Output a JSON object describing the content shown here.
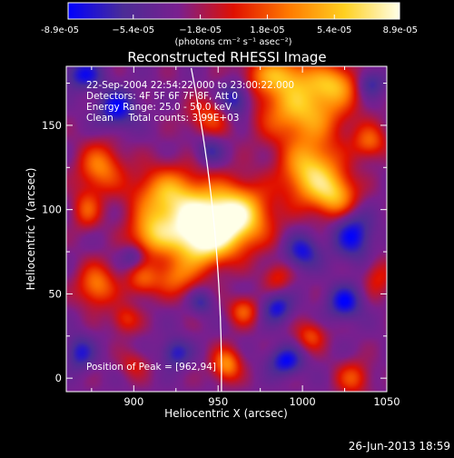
{
  "chart_data": {
    "type": "heatmap",
    "title": "Reconstructed RHESSI Image",
    "xlabel": "Heliocentric X (arcsec)",
    "ylabel": "Heliocentric Y (arcsec)",
    "xlim": [
      860,
      1050
    ],
    "ylim": [
      -8,
      185
    ],
    "x_ticks": [
      "900",
      "950",
      "1000",
      "1050"
    ],
    "x_tick_values": [
      900,
      950,
      1000,
      1050
    ],
    "y_ticks": [
      "0",
      "50",
      "100",
      "150"
    ],
    "y_tick_values": [
      0,
      50,
      100,
      150
    ],
    "colorbar": {
      "ticks": [
        "-8.9e-05",
        "−5.4e-05",
        "−1.8e-05",
        "1.8e-05",
        "5.4e-05",
        "8.9e-05"
      ],
      "tick_values": [
        -8.9e-05,
        -5.4e-05,
        -1.8e-05,
        1.8e-05,
        5.4e-05,
        8.9e-05
      ],
      "range": [
        -8.9e-05,
        8.9e-05
      ],
      "unit_label": "(photons cm⁻² s⁻¹ asec⁻²)",
      "colors": [
        "#0000ff",
        "#4b2c96",
        "#7a1f8f",
        "#e01000",
        "#ff7a00",
        "#ffd020",
        "#ffffe8"
      ]
    },
    "annotations": {
      "line1": "22-Sep-2004 22:54:22.000 to 23:00:22.000",
      "line2": "Detectors: 4F 5F 6F 7F 8F, Att 0",
      "line3": "Energy Range: 25.0 - 50.0 keV",
      "line4": "Clean     Total counts: 3.99E+03",
      "peak": "Position of Peak = [962,94]"
    },
    "peak_position": [
      962,
      94
    ],
    "footer_date": "26-Jun-2013 18:59",
    "limb_color": "#ffffff",
    "sources": [
      {
        "x": 960,
        "y": 96,
        "sx": 14,
        "sy": 13,
        "a": 1.0
      },
      {
        "x": 935,
        "y": 92,
        "sx": 16,
        "sy": 12,
        "a": 0.8
      },
      {
        "x": 920,
        "y": 110,
        "sx": 15,
        "sy": 11,
        "a": 0.62
      },
      {
        "x": 940,
        "y": 78,
        "sx": 12,
        "sy": 10,
        "a": 0.6
      },
      {
        "x": 910,
        "y": 85,
        "sx": 9,
        "sy": 9,
        "a": 0.55
      },
      {
        "x": 925,
        "y": 60,
        "sx": 9,
        "sy": 8,
        "a": 0.45
      },
      {
        "x": 905,
        "y": 58,
        "sx": 7,
        "sy": 7,
        "a": 0.4
      },
      {
        "x": 1005,
        "y": 122,
        "sx": 12,
        "sy": 13,
        "a": 0.82
      },
      {
        "x": 1020,
        "y": 108,
        "sx": 9,
        "sy": 9,
        "a": 0.6
      },
      {
        "x": 1000,
        "y": 160,
        "sx": 18,
        "sy": 14,
        "a": 0.75
      },
      {
        "x": 985,
        "y": 180,
        "sx": 14,
        "sy": 8,
        "a": 0.55
      },
      {
        "x": 1020,
        "y": 175,
        "sx": 10,
        "sy": 8,
        "a": 0.5
      },
      {
        "x": 1040,
        "y": 140,
        "sx": 7,
        "sy": 7,
        "a": 0.45
      },
      {
        "x": 880,
        "y": 125,
        "sx": 9,
        "sy": 10,
        "a": 0.55
      },
      {
        "x": 872,
        "y": 100,
        "sx": 6,
        "sy": 8,
        "a": 0.4
      },
      {
        "x": 878,
        "y": 55,
        "sx": 8,
        "sy": 9,
        "a": 0.55
      },
      {
        "x": 895,
        "y": 35,
        "sx": 6,
        "sy": 6,
        "a": 0.35
      },
      {
        "x": 965,
        "y": 40,
        "sx": 6,
        "sy": 6,
        "a": 0.45
      },
      {
        "x": 955,
        "y": 8,
        "sx": 6,
        "sy": 7,
        "a": 0.6
      },
      {
        "x": 1005,
        "y": 25,
        "sx": 6,
        "sy": 6,
        "a": 0.4
      },
      {
        "x": 1030,
        "y": 0,
        "sx": 7,
        "sy": 7,
        "a": 0.4
      },
      {
        "x": 985,
        "y": 60,
        "sx": 6,
        "sy": 6,
        "a": 0.3
      },
      {
        "x": 945,
        "y": 155,
        "sx": 9,
        "sy": 8,
        "a": 0.4
      },
      {
        "x": 1045,
        "y": 60,
        "sx": 6,
        "sy": 8,
        "a": 0.3
      },
      {
        "x": 900,
        "y": 8,
        "sx": 6,
        "sy": 6,
        "a": 0.25
      },
      {
        "x": 890,
        "y": 160,
        "sx": 8,
        "sy": 8,
        "a": -0.5
      },
      {
        "x": 870,
        "y": 180,
        "sx": 8,
        "sy": 6,
        "a": -0.45
      },
      {
        "x": 960,
        "y": 165,
        "sx": 7,
        "sy": 8,
        "a": -0.5
      },
      {
        "x": 945,
        "y": 135,
        "sx": 6,
        "sy": 6,
        "a": -0.3
      },
      {
        "x": 1040,
        "y": 175,
        "sx": 6,
        "sy": 6,
        "a": -0.4
      },
      {
        "x": 1030,
        "y": 85,
        "sx": 8,
        "sy": 10,
        "a": -0.5
      },
      {
        "x": 1000,
        "y": 75,
        "sx": 7,
        "sy": 7,
        "a": -0.45
      },
      {
        "x": 1025,
        "y": 45,
        "sx": 7,
        "sy": 7,
        "a": -0.5
      },
      {
        "x": 985,
        "y": 42,
        "sx": 6,
        "sy": 6,
        "a": -0.45
      },
      {
        "x": 990,
        "y": 10,
        "sx": 7,
        "sy": 6,
        "a": -0.5
      },
      {
        "x": 925,
        "y": 15,
        "sx": 6,
        "sy": 6,
        "a": -0.4
      },
      {
        "x": 900,
        "y": 72,
        "sx": 5,
        "sy": 5,
        "a": -0.3
      },
      {
        "x": 868,
        "y": 15,
        "sx": 6,
        "sy": 7,
        "a": -0.4
      },
      {
        "x": 940,
        "y": 45,
        "sx": 5,
        "sy": 5,
        "a": -0.3
      }
    ]
  }
}
